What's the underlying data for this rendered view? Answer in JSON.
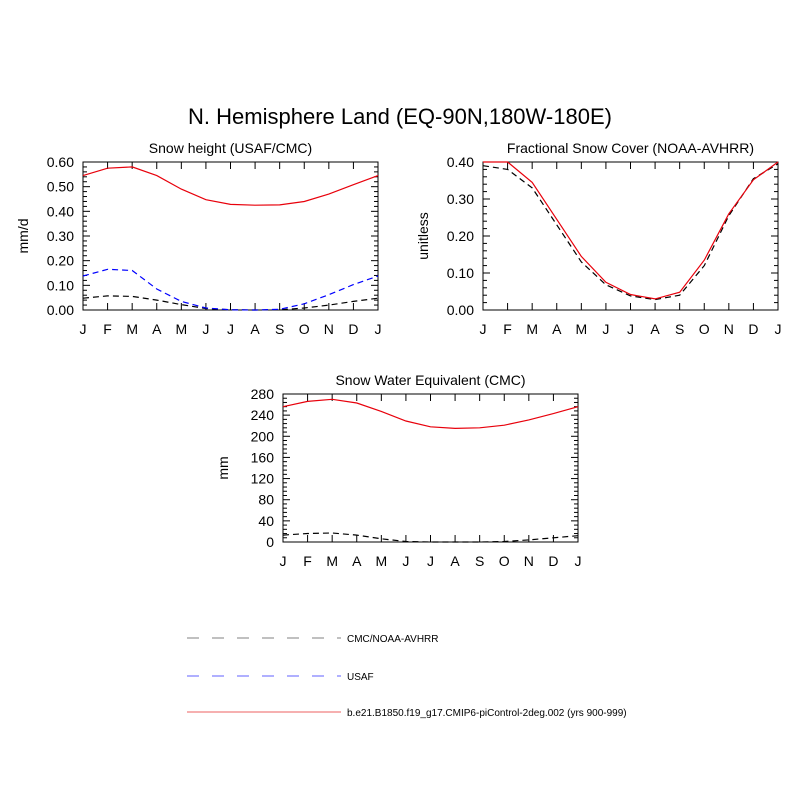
{
  "figure": {
    "title": "N. Hemisphere Land (EQ-90N,180W-180E)",
    "months": [
      "J",
      "F",
      "M",
      "A",
      "M",
      "J",
      "J",
      "A",
      "S",
      "O",
      "N",
      "D",
      "J"
    ]
  },
  "chart_data": [
    {
      "type": "line",
      "title": "Snow height (USAF/CMC)",
      "xlabel": "",
      "ylabel": "mm/d",
      "categories": [
        "J",
        "F",
        "M",
        "A",
        "M",
        "J",
        "J",
        "A",
        "S",
        "O",
        "N",
        "D",
        "J"
      ],
      "ylim": [
        0,
        0.6
      ],
      "yticks": [
        0,
        0.1,
        0.2,
        0.3,
        0.4,
        0.5,
        0.6
      ],
      "ytick_labels": [
        "0.00",
        "0.10",
        "0.20",
        "0.30",
        "0.40",
        "0.50",
        "0.60"
      ],
      "series": [
        {
          "name": "b.e21.B1850.f19_g17.CMIP6-piControl-2deg.002 (yrs 900-999)",
          "color": "#e8000b",
          "dash": "solid",
          "values": [
            0.545,
            0.575,
            0.58,
            0.545,
            0.49,
            0.447,
            0.428,
            0.425,
            0.426,
            0.44,
            0.47,
            0.508,
            0.545
          ]
        },
        {
          "name": "USAF",
          "color": "#0000ff",
          "dash": "dashed",
          "values": [
            0.138,
            0.165,
            0.16,
            0.085,
            0.035,
            0.008,
            0.001,
            0.0,
            0.003,
            0.025,
            0.062,
            0.103,
            0.138
          ]
        },
        {
          "name": "CMC/NOAA-AVHRR",
          "color": "#000000",
          "dash": "dashed",
          "values": [
            0.048,
            0.057,
            0.055,
            0.04,
            0.022,
            0.006,
            0.001,
            0.0,
            0.001,
            0.008,
            0.02,
            0.035,
            0.048
          ]
        }
      ]
    },
    {
      "type": "line",
      "title": "Fractional Snow Cover (NOAA-AVHRR)",
      "xlabel": "",
      "ylabel": "unitless",
      "categories": [
        "J",
        "F",
        "M",
        "A",
        "M",
        "J",
        "J",
        "A",
        "S",
        "O",
        "N",
        "D",
        "J"
      ],
      "ylim": [
        0,
        0.4
      ],
      "yticks": [
        0,
        0.1,
        0.2,
        0.3,
        0.4
      ],
      "ytick_labels": [
        "0.00",
        "0.10",
        "0.20",
        "0.30",
        "0.40"
      ],
      "series": [
        {
          "name": "b.e21.B1850.f19_g17.CMIP6-piControl-2deg.002 (yrs 900-999)",
          "color": "#e8000b",
          "dash": "solid",
          "values": [
            0.4,
            0.4,
            0.345,
            0.245,
            0.145,
            0.075,
            0.042,
            0.03,
            0.048,
            0.135,
            0.26,
            0.352,
            0.4
          ]
        },
        {
          "name": "CMC/NOAA-AVHRR",
          "color": "#000000",
          "dash": "dashed",
          "values": [
            0.39,
            0.38,
            0.33,
            0.23,
            0.13,
            0.068,
            0.038,
            0.028,
            0.04,
            0.12,
            0.255,
            0.355,
            0.395
          ]
        }
      ]
    },
    {
      "type": "line",
      "title": "Snow Water Equivalent (CMC)",
      "xlabel": "",
      "ylabel": "mm",
      "categories": [
        "J",
        "F",
        "M",
        "A",
        "M",
        "J",
        "J",
        "A",
        "S",
        "O",
        "N",
        "D",
        "J"
      ],
      "ylim": [
        0,
        280
      ],
      "yticks": [
        0,
        40,
        80,
        120,
        160,
        200,
        240,
        280
      ],
      "ytick_labels": [
        "0",
        "40",
        "80",
        "120",
        "160",
        "200",
        "240",
        "280"
      ],
      "series": [
        {
          "name": "b.e21.B1850.f19_g17.CMIP6-piControl-2deg.002 (yrs 900-999)",
          "color": "#e8000b",
          "dash": "solid",
          "values": [
            256,
            266,
            270,
            263,
            247,
            229,
            218,
            215,
            216,
            221,
            231,
            243,
            256
          ]
        },
        {
          "name": "CMC/NOAA-AVHRR",
          "color": "#000000",
          "dash": "dashed",
          "values": [
            13,
            16,
            17,
            13,
            6,
            1,
            0,
            0,
            0,
            1,
            4,
            8,
            12
          ]
        }
      ]
    }
  ],
  "legend": {
    "placement": "bottom-center",
    "items": [
      {
        "label": "CMC/NOAA-AVHRR",
        "color": "#9a9a9a",
        "dash": "dashed"
      },
      {
        "label": "USAF",
        "color": "#8080ff",
        "dash": "dashed"
      },
      {
        "label": "b.e21.B1850.f19_g17.CMIP6-piControl-2deg.002 (yrs 900-999)",
        "color": "#f08080",
        "dash": "solid"
      }
    ]
  }
}
